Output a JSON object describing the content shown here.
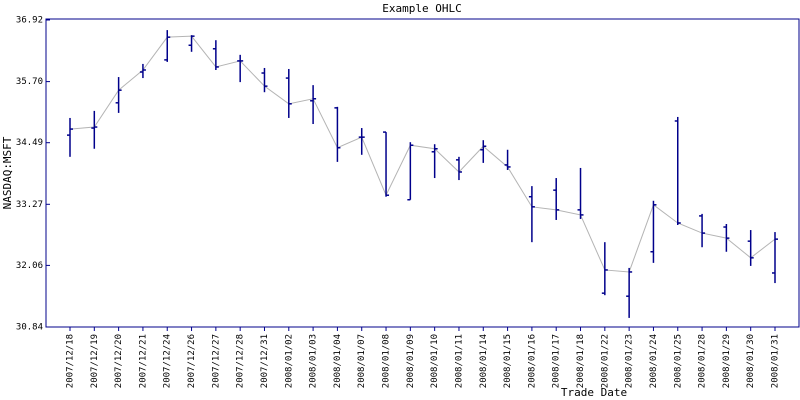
{
  "chart_data": {
    "type": "ohlc",
    "title": "Example OHLC",
    "x_label": "Trade Date",
    "y_label": "NASDAQ:MSFT",
    "color": "#00008b",
    "line_color": "#b4b4b4",
    "categories": [
      "2007/12/18",
      "2007/12/19",
      "2007/12/20",
      "2007/12/21",
      "2007/12/24",
      "2007/12/26",
      "2007/12/27",
      "2007/12/28",
      "2007/12/31",
      "2008/01/02",
      "2008/01/03",
      "2008/01/04",
      "2008/01/07",
      "2008/01/08",
      "2008/01/09",
      "2008/01/10",
      "2008/01/11",
      "2008/01/14",
      "2008/01/15",
      "2008/01/16",
      "2008/01/17",
      "2008/01/18",
      "2008/01/22",
      "2008/01/23",
      "2008/01/24",
      "2008/01/25",
      "2008/01/28",
      "2008/01/29",
      "2008/01/30",
      "2008/01/31"
    ],
    "open": [
      34.64,
      34.78,
      35.28,
      35.89,
      36.13,
      36.42,
      36.35,
      36.11,
      35.87,
      35.77,
      35.32,
      35.18,
      34.6,
      34.7,
      33.36,
      34.31,
      34.15,
      34.35,
      34.05,
      33.42,
      33.55,
      33.16,
      31.51,
      31.45,
      32.33,
      34.92,
      33.04,
      32.82,
      32.54,
      31.91
    ],
    "high": [
      34.98,
      35.12,
      35.79,
      36.05,
      36.72,
      36.62,
      36.52,
      36.23,
      35.97,
      35.95,
      35.63,
      35.2,
      34.78,
      34.7,
      34.5,
      34.46,
      34.21,
      34.54,
      34.35,
      33.63,
      33.79,
      33.99,
      32.52,
      32.01,
      33.34,
      35.0,
      33.08,
      32.88,
      32.76,
      32.72
    ],
    "low": [
      34.21,
      34.37,
      35.08,
      35.77,
      36.09,
      36.29,
      35.93,
      35.69,
      35.49,
      34.98,
      34.86,
      34.11,
      34.25,
      33.42,
      33.36,
      33.79,
      33.75,
      34.09,
      33.95,
      32.52,
      32.96,
      32.98,
      31.47,
      31.02,
      32.11,
      32.86,
      32.42,
      32.33,
      32.05,
      31.71
    ],
    "close": [
      34.76,
      34.8,
      35.53,
      35.93,
      36.58,
      36.6,
      35.99,
      36.11,
      35.61,
      35.26,
      35.36,
      34.39,
      34.6,
      33.45,
      34.44,
      34.37,
      33.91,
      34.42,
      34.01,
      33.22,
      33.16,
      33.06,
      31.97,
      31.93,
      33.26,
      32.9,
      32.7,
      32.6,
      32.21,
      32.58
    ],
    "ylim": [
      30.84,
      36.92
    ],
    "yticks": [
      30.84,
      32.06,
      33.27,
      34.49,
      {
        "value": 35.7,
        "label": "35.70"
      },
      36.92
    ]
  }
}
